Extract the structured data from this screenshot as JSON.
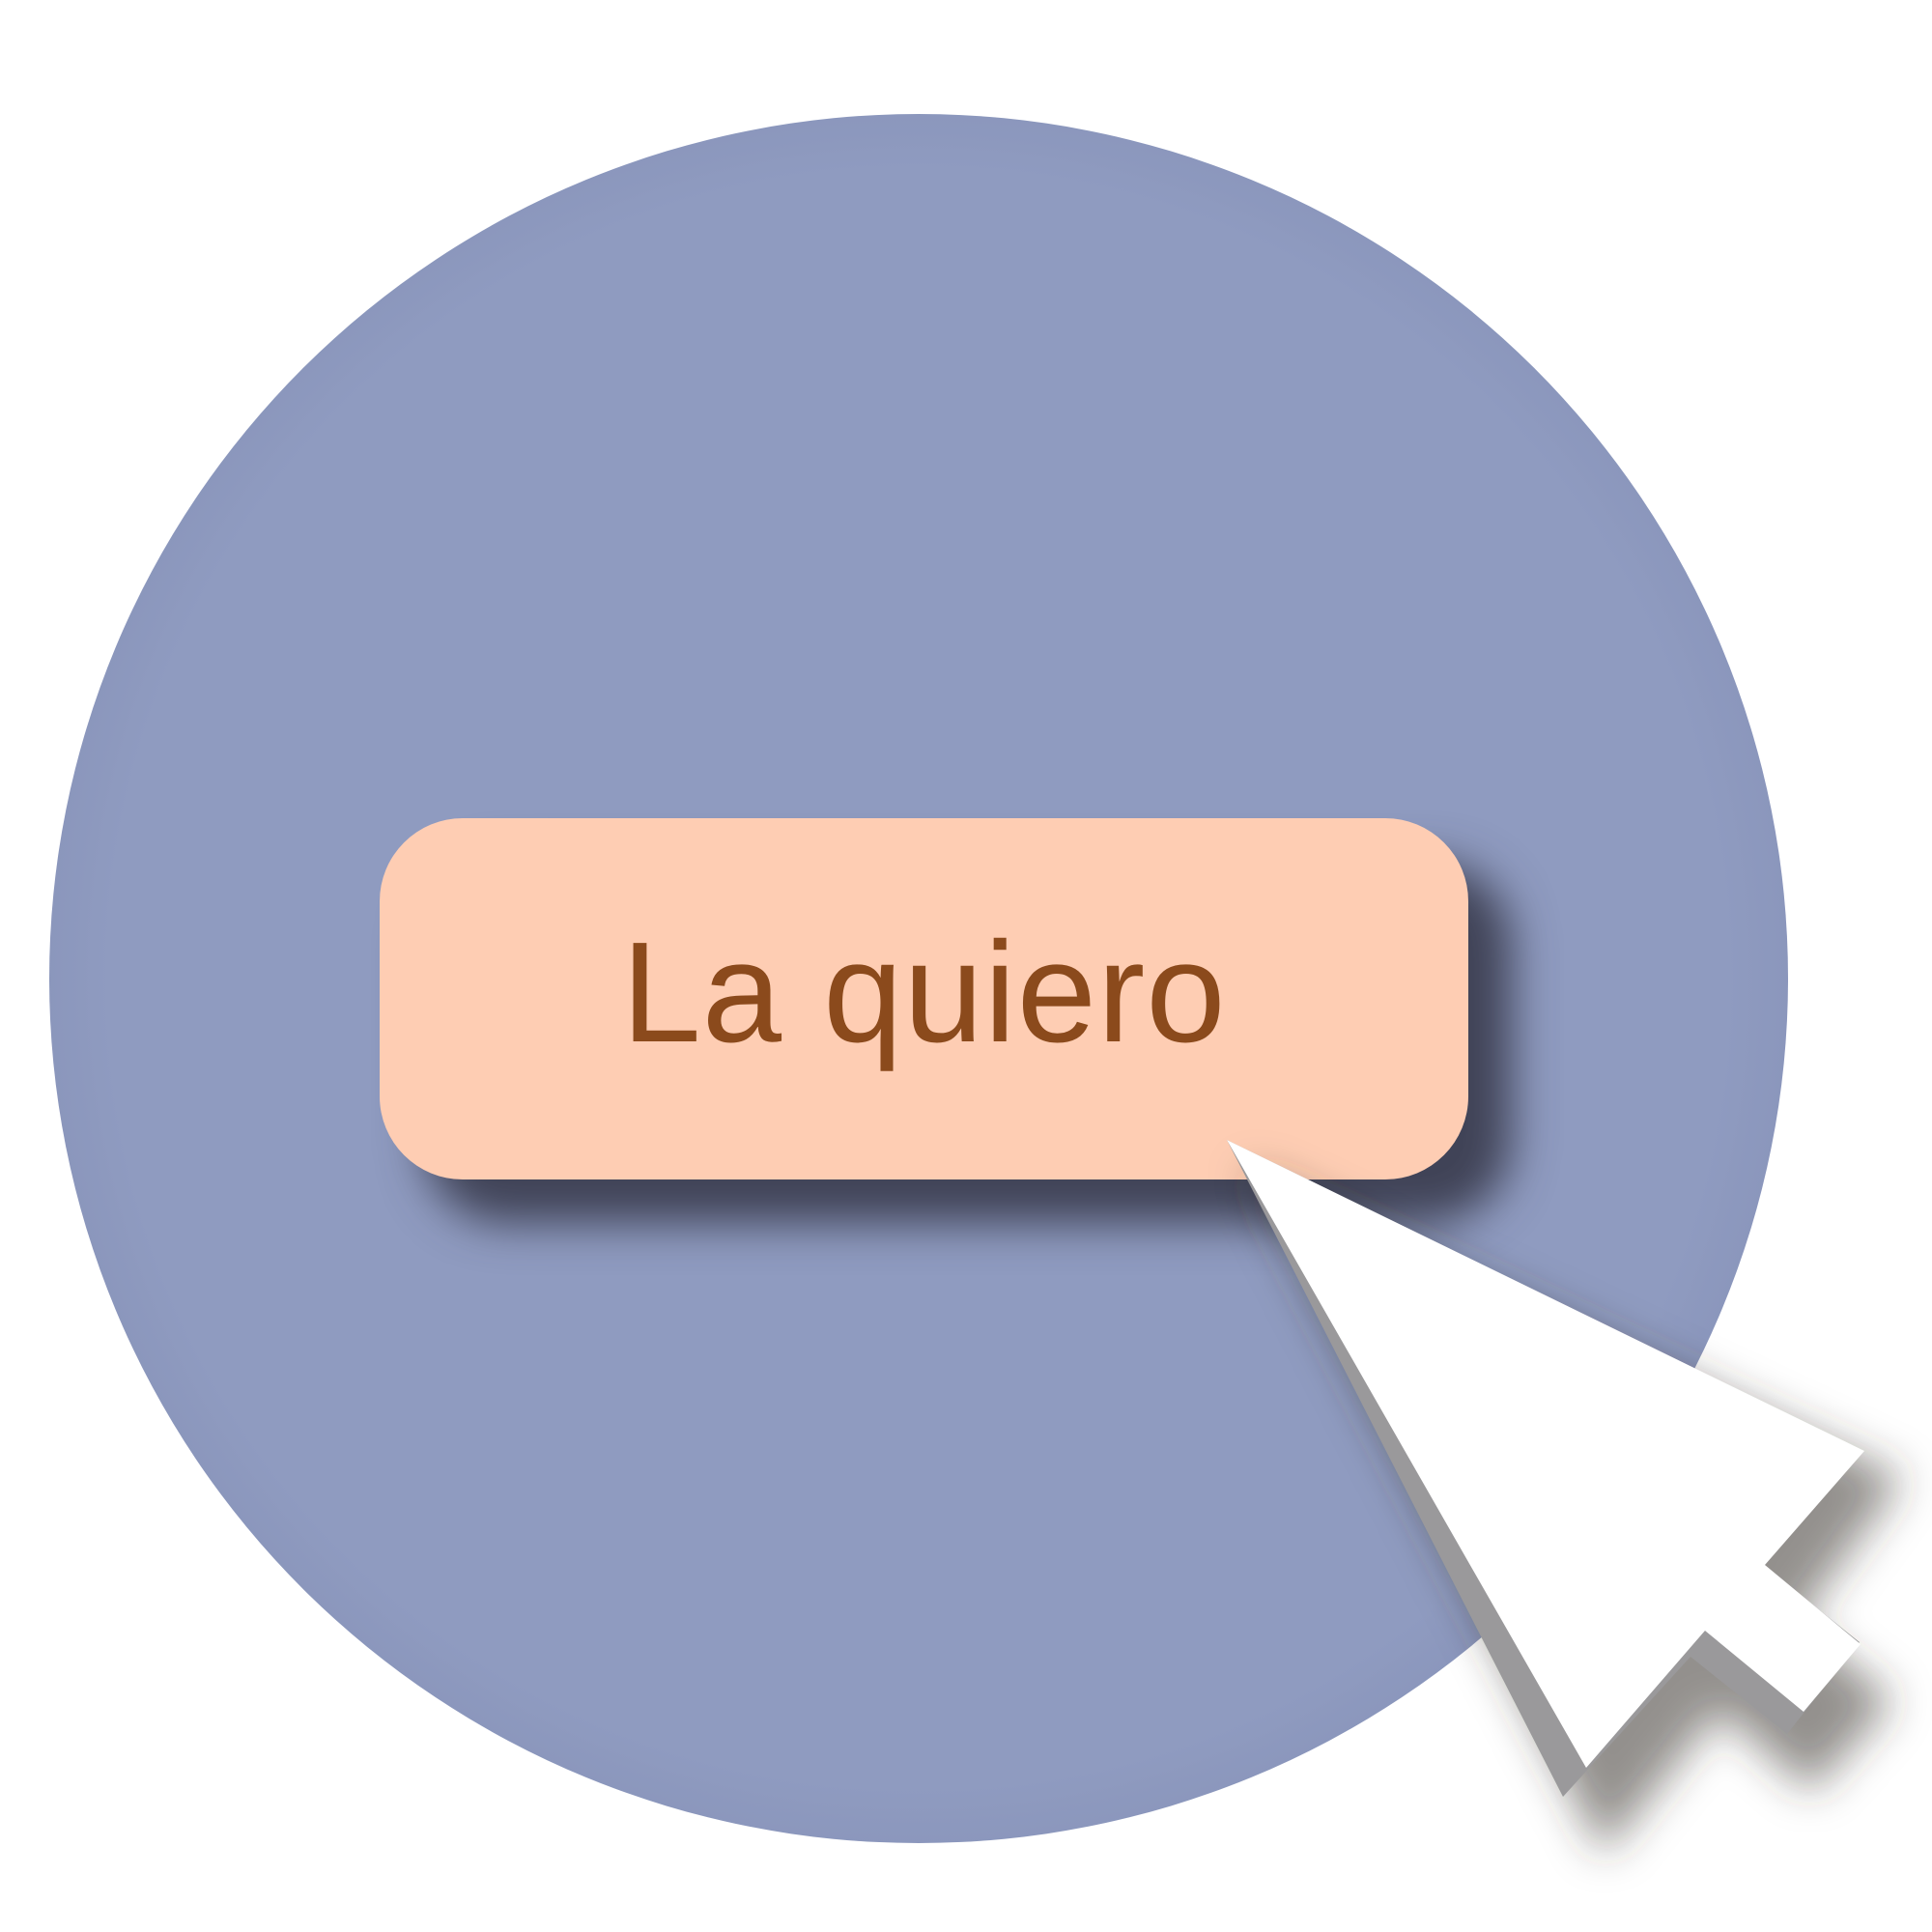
{
  "button": {
    "label": "La quiero"
  },
  "icons": {
    "pointer": "mouse-pointer-icon"
  },
  "colors": {
    "background": "#ffffff",
    "circle": "#8f9bc0",
    "button_fill": "#fecdb3",
    "button_text": "#8b4a1c",
    "cursor_fill": "#ffffff"
  }
}
